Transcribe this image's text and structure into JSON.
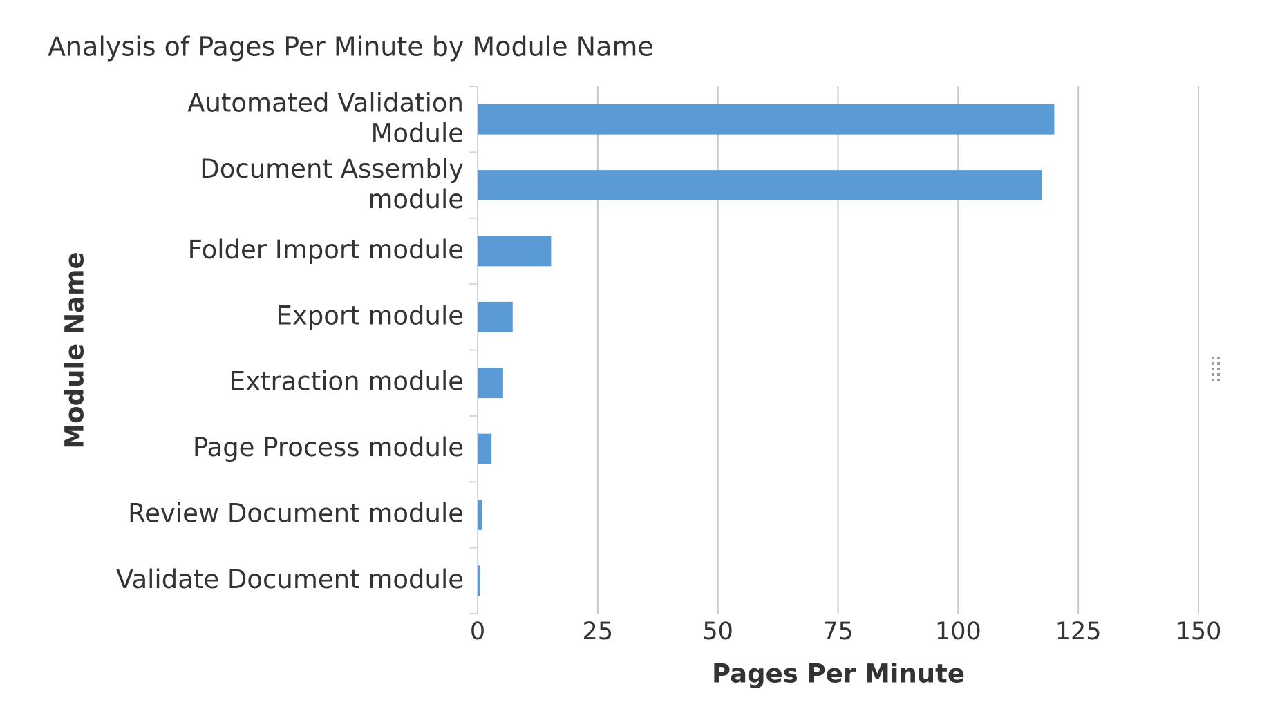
{
  "chart_data": {
    "type": "bar",
    "orientation": "horizontal",
    "title": "Analysis of Pages Per Minute by Module Name",
    "x_label": "Pages Per Minute",
    "y_label": "Module Name",
    "categories": [
      "Automated Validation Module",
      "Document Assembly module",
      "Folder Import module",
      "Export module",
      "Extraction module",
      "Page Process module",
      "Review Document module",
      "Validate Document module"
    ],
    "values": [
      120,
      117.5,
      15.3,
      7.3,
      5.3,
      2.9,
      0.9,
      0.5
    ],
    "color": "#5b9bd5",
    "xlim": [
      0,
      150
    ],
    "xticks": [
      0,
      25,
      50,
      75,
      100,
      125,
      150
    ],
    "grid": true
  }
}
